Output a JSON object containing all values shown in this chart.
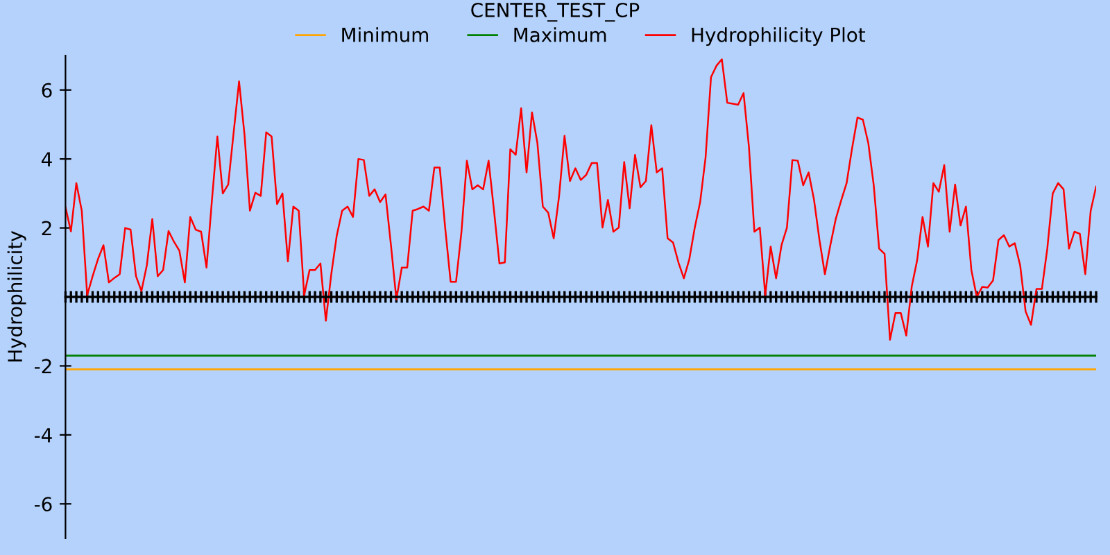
{
  "chart_data": {
    "type": "line",
    "title": "CENTER_TEST_CP",
    "ylabel": "Hydrophilicity",
    "categories": [
      null,
      null,
      null,
      null,
      null,
      null,
      null,
      null,
      null,
      null,
      null,
      null,
      null,
      null,
      null,
      null,
      null,
      null,
      null,
      null,
      null,
      null,
      null,
      null,
      null,
      null,
      null,
      null,
      null,
      null,
      null,
      null,
      null,
      null,
      null,
      null,
      null,
      null,
      null,
      null,
      null,
      null,
      null,
      null,
      null,
      null,
      null,
      null,
      null,
      null,
      null,
      null,
      null,
      null,
      null,
      null,
      null,
      null,
      null,
      null,
      null,
      null,
      null,
      null,
      null,
      null,
      null,
      null,
      null,
      null,
      null,
      null,
      null,
      null,
      null,
      null,
      null,
      null,
      null,
      null,
      null,
      null,
      null,
      null,
      null,
      null,
      null,
      null,
      null,
      null,
      null,
      null,
      null,
      null,
      null,
      null,
      null,
      null,
      null,
      null,
      null,
      null,
      null,
      null,
      null,
      null,
      null,
      null,
      null,
      null,
      null,
      null,
      null,
      null,
      null,
      null,
      null,
      null,
      null,
      null,
      null,
      null,
      null,
      null,
      null,
      null,
      null,
      null,
      null,
      null,
      null,
      null,
      null,
      null,
      null,
      null,
      null,
      null,
      null,
      null,
      null,
      null,
      null,
      null,
      null,
      null,
      null,
      null,
      null,
      null,
      null,
      null,
      null,
      null,
      null,
      null,
      null,
      null,
      null,
      null,
      null,
      null,
      null,
      null,
      null,
      null,
      null,
      null,
      null,
      null,
      null,
      null,
      null,
      null,
      null,
      null,
      null,
      null,
      null,
      null,
      null,
      null,
      null,
      null,
      null,
      null,
      null,
      null,
      null,
      null,
      null
    ],
    "series": [
      {
        "name": "Hydrophilicity Plot",
        "color": "#ff0000",
        "values": [
          2.6,
          1.9,
          3.3,
          2.5,
          0.05,
          0.6,
          1.1,
          1.5,
          0.42,
          0.55,
          0.66,
          2.0,
          1.95,
          0.6,
          0.17,
          0.92,
          2.26,
          0.6,
          0.78,
          1.91,
          1.6,
          1.34,
          0.42,
          2.32,
          1.95,
          1.89,
          0.85,
          2.81,
          4.65,
          3.0,
          3.26,
          4.77,
          6.25,
          4.71,
          2.5,
          3.02,
          2.93,
          4.77,
          4.65,
          2.69,
          3.0,
          1.03,
          2.62,
          2.5,
          0.05,
          0.78,
          0.78,
          0.97,
          -0.69,
          0.66,
          1.77,
          2.5,
          2.62,
          2.32,
          4.0,
          3.97,
          2.93,
          3.12,
          2.75,
          2.97,
          1.5,
          -0.07,
          0.85,
          0.85,
          2.5,
          2.55,
          2.62,
          2.5,
          3.75,
          3.75,
          2.0,
          0.44,
          0.44,
          1.89,
          3.95,
          3.12,
          3.24,
          3.12,
          3.95,
          2.5,
          0.97,
          1.0,
          4.28,
          4.12,
          5.47,
          3.61,
          5.35,
          4.46,
          2.62,
          2.44,
          1.7,
          2.93,
          4.67,
          3.36,
          3.73,
          3.39,
          3.54,
          3.88,
          3.88,
          2.01,
          2.81,
          1.89,
          2.01,
          3.91,
          2.57,
          4.12,
          3.18,
          3.36,
          4.98,
          3.61,
          3.73,
          1.7,
          1.58,
          1.0,
          0.54,
          1.09,
          2.0,
          2.75,
          4.04,
          6.37,
          6.7,
          6.89,
          5.63,
          5.6,
          5.57,
          5.91,
          4.34,
          1.89,
          2.01,
          0.05,
          1.46,
          0.54,
          1.5,
          2.01,
          3.97,
          3.95,
          3.24,
          3.61,
          2.81,
          1.65,
          0.66,
          1.5,
          2.26,
          2.8,
          3.3,
          4.3,
          5.2,
          5.14,
          4.46,
          3.24,
          1.4,
          1.25,
          -1.24,
          -0.47,
          -0.47,
          -1.12,
          0.29,
          1.06,
          2.32,
          1.46,
          3.3,
          3.05,
          3.82,
          1.89,
          3.26,
          2.07,
          2.62,
          0.78,
          0.0,
          0.29,
          0.27,
          0.48,
          1.65,
          1.79,
          1.46,
          1.56,
          0.91,
          -0.42,
          -0.81,
          0.23,
          0.23,
          1.4,
          3.0,
          3.3,
          3.12,
          1.4,
          1.89,
          1.83,
          0.66,
          2.5,
          3.2
        ]
      }
    ],
    "ref_lines": [
      {
        "axis": "y",
        "value": -2.1,
        "label": "Minimum",
        "color": "#ffa500",
        "line_style": "solid"
      },
      {
        "axis": "y",
        "value": -1.7,
        "label": "Maximum",
        "color": "#008000",
        "line_style": "solid"
      }
    ],
    "ylim": [
      -7,
      7
    ],
    "yticks": [
      -6,
      -4,
      -2,
      2,
      4,
      6
    ],
    "tick_labels": "y",
    "legend": "top",
    "marker": "none",
    "line_style": "solid"
  }
}
